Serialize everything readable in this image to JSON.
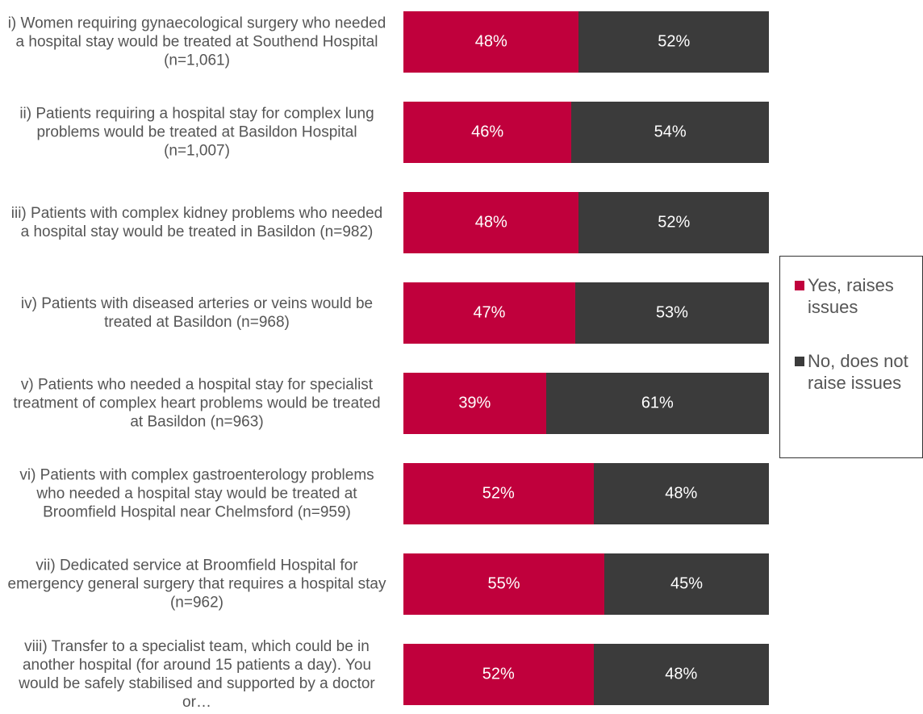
{
  "chart_data": {
    "type": "bar",
    "orientation": "horizontal",
    "stacked": true,
    "categories": [
      "i) Women requiring gynaecological surgery who needed a hospital stay would be treated at Southend Hospital (n=1,061)",
      "ii) Patients requiring a hospital stay for complex lung problems would be treated at Basildon Hospital (n=1,007)",
      "iii) Patients with complex kidney problems who needed a hospital stay would be treated in Basildon (n=982)",
      "iv) Patients with diseased arteries or veins would be treated at Basildon (n=968)",
      "v) Patients who needed a hospital stay for specialist treatment of complex heart problems would be treated at Basildon (n=963)",
      "vi) Patients with complex gastroenterology problems who needed a hospital stay would be treated at Broomfield Hospital near Chelmsford (n=959)",
      "vii) Dedicated service at Broomfield Hospital for emergency general surgery that requires a hospital stay (n=962)",
      "viii) Transfer to a specialist team, which could be in another hospital (for around 15 patients a day). You would be safely stabilised and supported by a doctor or…"
    ],
    "series": [
      {
        "name": "Yes, raises issues",
        "color": "#c0003c",
        "values": [
          48,
          46,
          48,
          47,
          39,
          52,
          55,
          52
        ],
        "value_labels": [
          "48%",
          "46%",
          "48%",
          "47%",
          "39%",
          "52%",
          "55%",
          "52%"
        ]
      },
      {
        "name": "No, does not raise issues",
        "color": "#3b3b3b",
        "values": [
          52,
          54,
          52,
          53,
          61,
          48,
          45,
          48
        ],
        "value_labels": [
          "52%",
          "54%",
          "52%",
          "53%",
          "61%",
          "48%",
          "45%",
          "48%"
        ]
      }
    ],
    "xlim": [
      0,
      100
    ],
    "legend": "right"
  }
}
